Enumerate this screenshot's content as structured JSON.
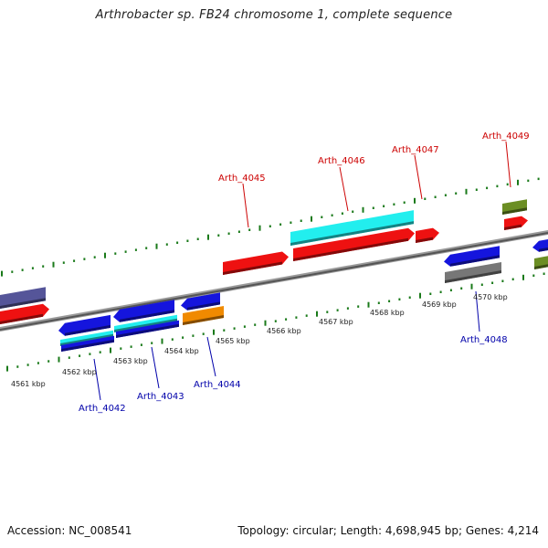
{
  "title": "Arthrobacter sp. FB24 chromosome 1, complete sequence",
  "footer": {
    "accession": "Accession: NC_008541",
    "summary": "Topology: circular; Length: 4,698,945 bp; Genes: 4,214"
  },
  "colors": {
    "red": "#ee1111",
    "blue": "#1515dd",
    "cyan": "#22eeee",
    "orange": "#f08a00",
    "olive": "#6b8e23",
    "gray": "#777777",
    "purple": "#555599",
    "tick": "#1a7a1a",
    "forward_label": "#cc0000",
    "reverse_label": "#0000aa"
  },
  "scale_labels": [
    "4561 kbp",
    "4562 kbp",
    "4563 kbp",
    "4564 kbp",
    "4565 kbp",
    "4566 kbp",
    "4567 kbp",
    "4568 kbp",
    "4569 kbp",
    "4570 kbp"
  ],
  "gene_labels": [
    {
      "text": "Arth_4045",
      "strand": "forward"
    },
    {
      "text": "Arth_4046",
      "strand": "forward"
    },
    {
      "text": "Arth_4047",
      "strand": "forward"
    },
    {
      "text": "Arth_4049",
      "strand": "forward"
    },
    {
      "text": "Arth_4042",
      "strand": "reverse"
    },
    {
      "text": "Arth_4043",
      "strand": "reverse"
    },
    {
      "text": "Arth_4044",
      "strand": "reverse"
    },
    {
      "text": "Arth_4048",
      "strand": "reverse"
    }
  ]
}
